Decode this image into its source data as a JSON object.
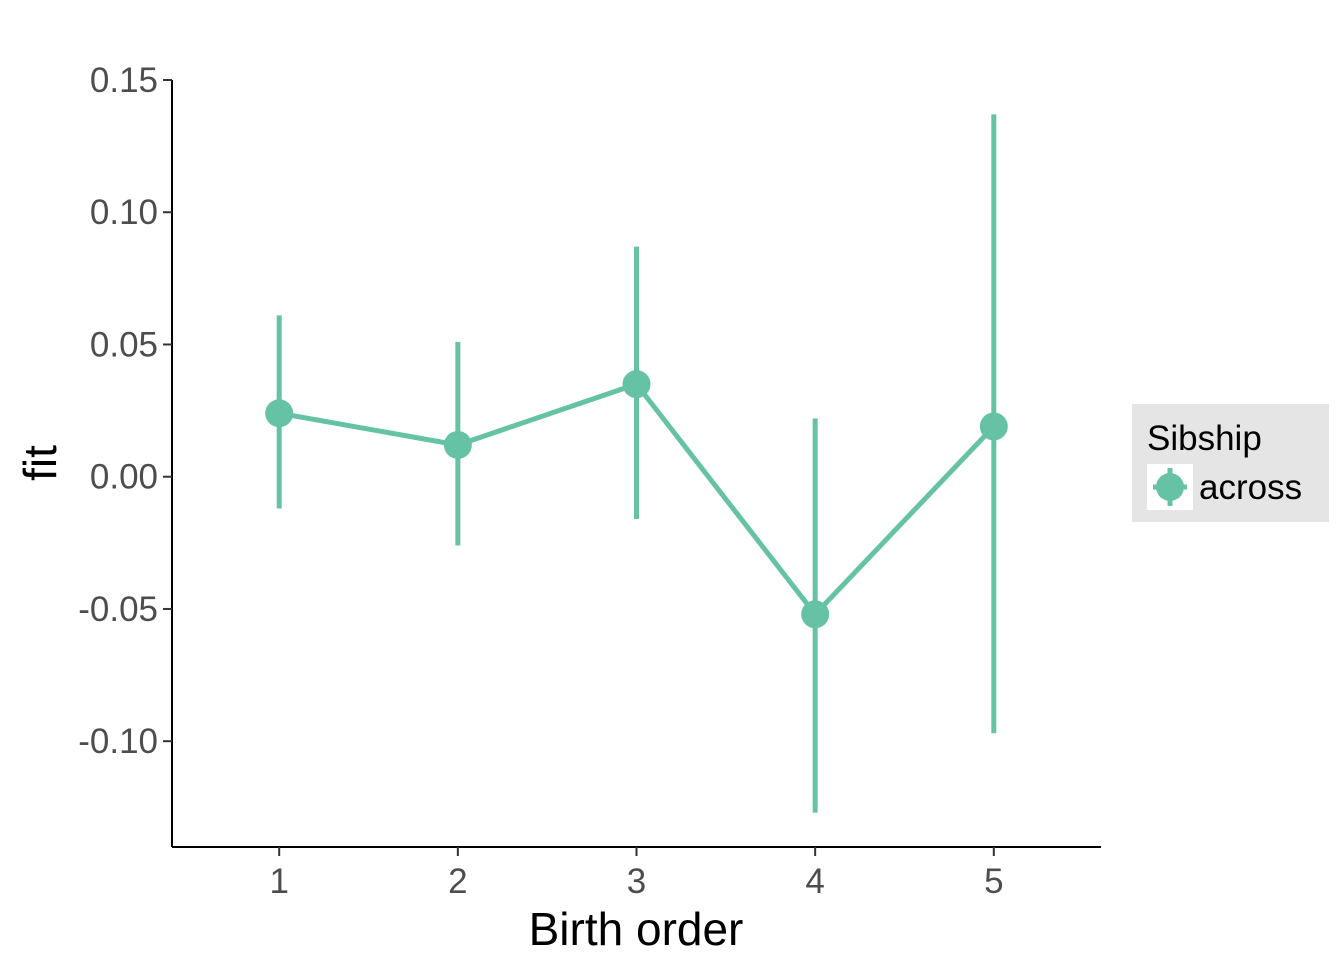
{
  "chart_data": {
    "type": "line",
    "xlabel": "Birth order",
    "ylabel": "fit",
    "x": [
      1,
      2,
      3,
      4,
      5
    ],
    "x_tick_labels": [
      "1",
      "2",
      "3",
      "4",
      "5"
    ],
    "y_ticks": [
      0.15,
      0.1,
      0.05,
      0.0,
      -0.05,
      -0.1
    ],
    "y_tick_labels": [
      "0.15",
      "0.10",
      "0.05",
      "0.00",
      "-0.05",
      "-0.10"
    ],
    "xlim": [
      0.4,
      5.6
    ],
    "ylim": [
      -0.14,
      0.15
    ],
    "grid": false,
    "legend_position": "right",
    "legend": {
      "title": "Sibship",
      "entries": [
        "across"
      ]
    },
    "series": [
      {
        "name": "across",
        "color": "#66c2a5",
        "values": [
          0.024,
          0.012,
          0.035,
          -0.052,
          0.019
        ],
        "lower": [
          -0.012,
          -0.026,
          -0.016,
          -0.127,
          -0.097
        ],
        "upper": [
          0.061,
          0.051,
          0.087,
          0.022,
          0.137
        ]
      }
    ]
  }
}
